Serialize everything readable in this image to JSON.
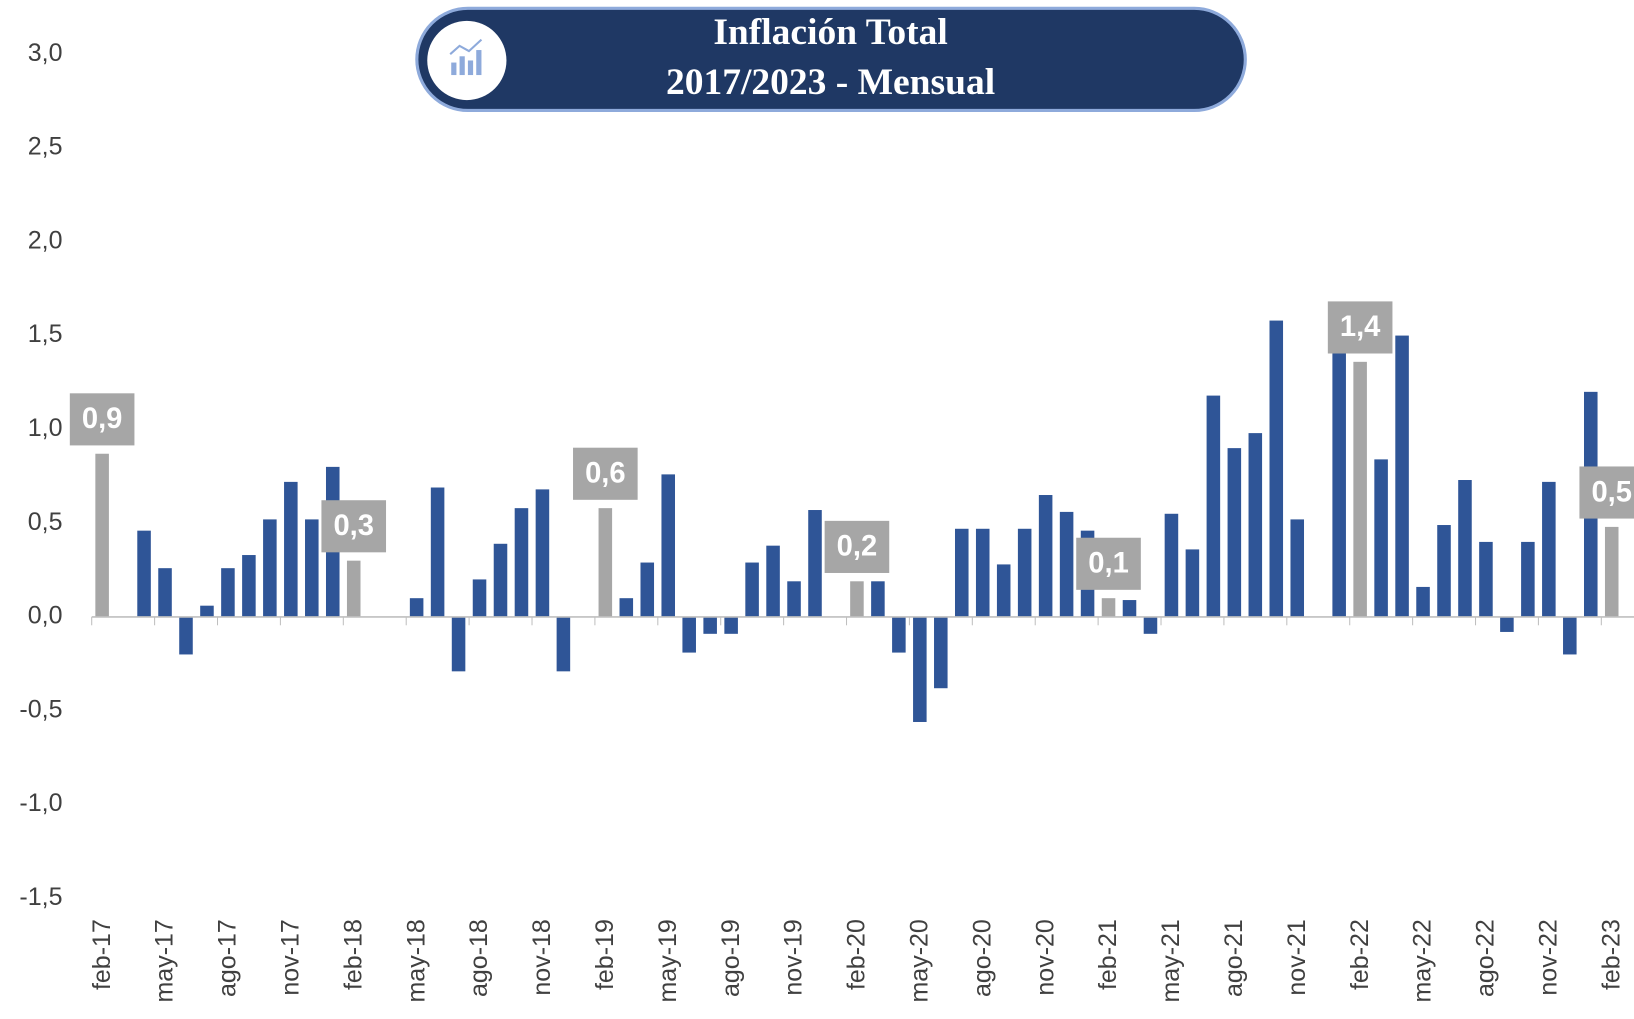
{
  "chart_data": {
    "type": "bar",
    "title": "Inflación Total",
    "subtitle": "2017/2023 - Mensual",
    "categories": [
      "feb-17",
      null,
      null,
      "may-17",
      null,
      null,
      "ago-17",
      null,
      null,
      "nov-17",
      null,
      null,
      "feb-18",
      null,
      null,
      "may-18",
      null,
      null,
      "ago-18",
      null,
      null,
      "nov-18",
      null,
      null,
      "feb-19",
      null,
      null,
      "may-19",
      null,
      null,
      "ago-19",
      null,
      null,
      "nov-19",
      null,
      null,
      "feb-20",
      null,
      null,
      "may-20",
      null,
      null,
      "ago-20",
      null,
      null,
      "nov-20",
      null,
      null,
      "feb-21",
      null,
      null,
      "may-21",
      null,
      null,
      "ago-21",
      null,
      null,
      "nov-21",
      null,
      null,
      "feb-22",
      null,
      null,
      "may-22",
      null,
      null,
      "ago-22",
      null,
      null,
      "nov-22",
      null,
      null,
      "feb-23"
    ],
    "values": [
      0.87,
      null,
      0.46,
      0.26,
      -0.2,
      0.06,
      0.26,
      0.33,
      0.52,
      0.72,
      0.52,
      0.8,
      0.3,
      null,
      null,
      0.1,
      0.69,
      -0.29,
      0.2,
      0.39,
      0.58,
      0.68,
      -0.29,
      null,
      0.58,
      0.1,
      0.29,
      0.76,
      -0.19,
      -0.09,
      -0.09,
      0.29,
      0.38,
      0.19,
      0.57,
      null,
      0.19,
      0.19,
      -0.19,
      -0.56,
      -0.38,
      0.47,
      0.47,
      0.28,
      0.47,
      0.65,
      0.56,
      0.46,
      0.1,
      0.09,
      -0.09,
      0.55,
      0.36,
      1.18,
      0.9,
      0.98,
      1.58,
      0.52,
      null,
      1.45,
      1.36,
      0.84,
      1.5,
      0.16,
      0.49,
      0.73,
      0.4,
      -0.08,
      0.4,
      0.72,
      -0.2,
      1.2,
      0.48
    ],
    "value_labels": [
      "0,9",
      null,
      null,
      null,
      null,
      null,
      null,
      null,
      null,
      null,
      null,
      null,
      "0,3",
      null,
      null,
      null,
      null,
      null,
      null,
      null,
      null,
      null,
      null,
      null,
      "0,6",
      null,
      null,
      null,
      null,
      null,
      null,
      null,
      null,
      null,
      null,
      null,
      "0,2",
      null,
      null,
      null,
      null,
      null,
      null,
      null,
      null,
      null,
      null,
      null,
      "0,1",
      null,
      null,
      null,
      null,
      null,
      null,
      null,
      null,
      null,
      null,
      null,
      "1,4",
      null,
      null,
      null,
      null,
      null,
      null,
      null,
      null,
      null,
      null,
      null,
      "0,5"
    ],
    "color": "#2f5597",
    "highlight_color": "#a6a6a6",
    "ylim": [
      -1.5,
      3.0
    ],
    "yticks": [
      {
        "value": -1.5,
        "label": "-1,5"
      },
      {
        "value": -1.0,
        "label": "-1,0"
      },
      {
        "value": -0.5,
        "label": "-0,5"
      },
      {
        "value": 0,
        "label": "0,0"
      },
      {
        "value": 0.5,
        "label": "0,5"
      },
      {
        "value": 1.0,
        "label": "1,0"
      },
      {
        "value": 1.5,
        "label": "1,5"
      },
      {
        "value": 2.0,
        "label": "2,0"
      },
      {
        "value": 2.5,
        "label": "2,5"
      },
      {
        "value": 3.0,
        "label": "3,0"
      }
    ],
    "grid": false
  }
}
